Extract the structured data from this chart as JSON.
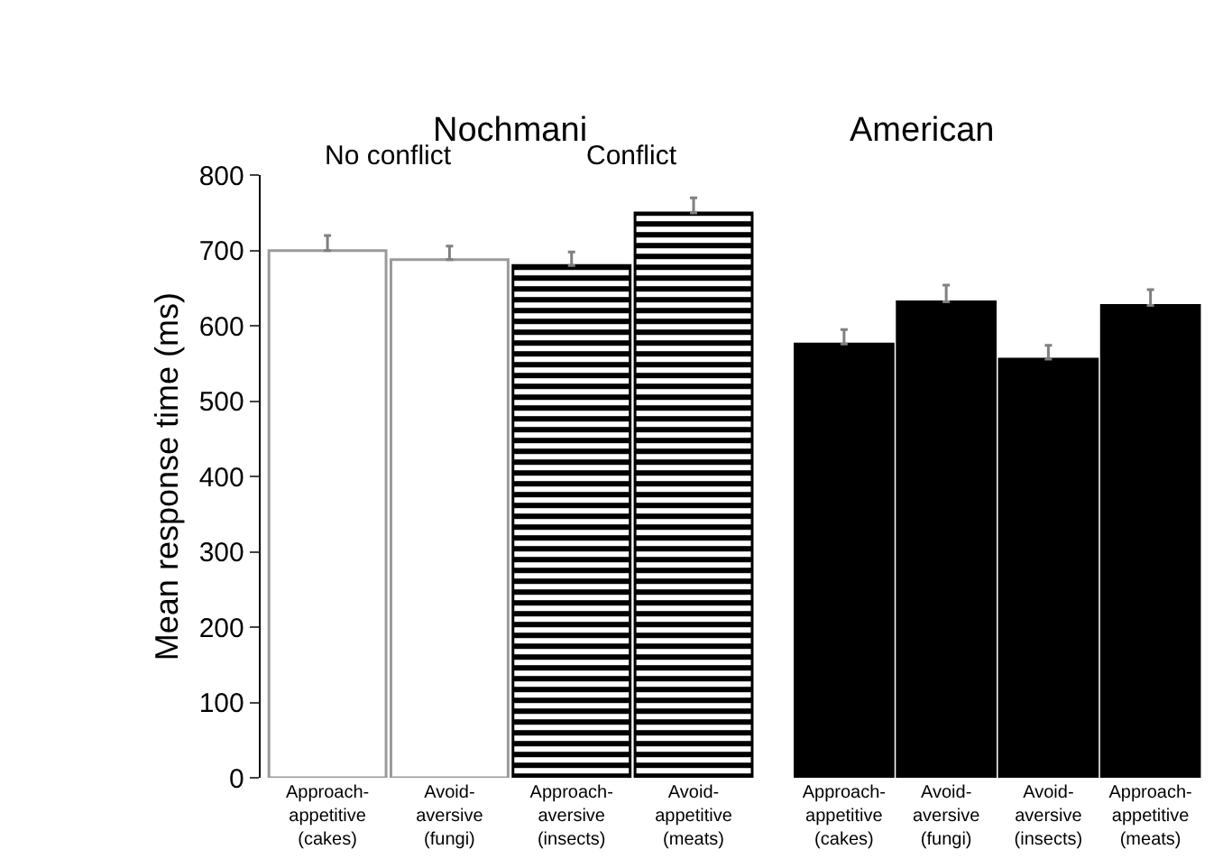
{
  "chart_data": [
    {
      "type": "bar",
      "title": "Nochmani",
      "ylabel": "Mean response time (ms)",
      "categories": [
        "Approach-\nappetitive\n(cakes)",
        "Avoid-\naversive\n(fungi)",
        "Approach-\naversive\n(insects)",
        "Avoid-\nappetitive\n(meats)"
      ],
      "series": [
        {
          "name": "No conflict",
          "color": "#ffffff",
          "values": [
            700,
            688,
            null,
            null
          ],
          "errors": [
            [
              700,
              720
            ],
            [
              688,
              706
            ],
            null,
            null
          ]
        },
        {
          "name": "Conflict",
          "color": "#000000",
          "values": [
            null,
            null,
            680,
            750
          ],
          "errors": [
            null,
            null,
            [
              680,
              698
            ],
            [
              750,
              770
            ]
          ]
        }
      ],
      "ylim": [
        0,
        800
      ],
      "yticks": [
        0,
        100,
        200,
        300,
        400,
        500,
        600,
        700,
        800
      ],
      "grid": false,
      "legend": false
    },
    {
      "type": "bar",
      "title": "American",
      "categories": [
        "Approach-\nappetitive\n(cakes)",
        "Avoid-\naversive\n(fungi)",
        "Avoid-\naversive\n(insects)",
        "Approach-\nappetitive\n(meats)"
      ],
      "series": [
        {
          "color": "#000000",
          "values": [
            576,
            632,
            556,
            627
          ],
          "errors": [
            [
              576,
              595
            ],
            [
              632,
              654
            ],
            [
              556,
              574
            ],
            [
              627,
              648
            ]
          ]
        }
      ],
      "ylim": [
        0,
        800
      ],
      "tick_labels": "x",
      "grid": false,
      "legend": false
    }
  ]
}
